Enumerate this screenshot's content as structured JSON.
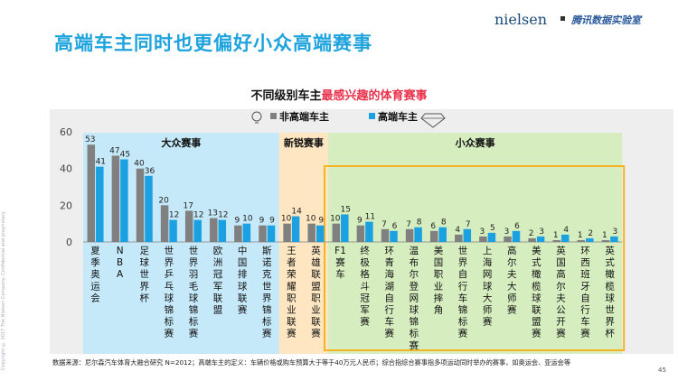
{
  "slide": {
    "title": "高端车主同时也更偏好小众高端赛事",
    "brand": "nielsen",
    "lab": "腾讯数据实验室",
    "copyright": "Copyright © 2017 The Nielsen Company. Confidential and proprietary.",
    "page_number": "45",
    "footnote": "数据来源：尼尔森汽车体育大融合研究 N=2012；高端车主的定义：车辆价格或购车预算大于等于40万元人民币；综合指综合赛事指多项运动同时举办的赛事，如奥运会、亚运会等"
  },
  "chart_data": {
    "type": "bar",
    "title_prefix": "不同级别车主",
    "title_highlight": "最感兴趣的体育赛事",
    "ylim": [
      0,
      60
    ],
    "yticks": [
      0,
      20,
      40,
      60
    ],
    "legend_position": "top",
    "categories": [
      "夏季奥运会",
      "NBA",
      "足球世界杯",
      "世界乒乓球锦标赛",
      "世界羽毛球锦标赛",
      "欧洲冠军联盟",
      "中国排球联赛",
      "斯诺克世界锦标赛",
      "王者荣耀职业联赛",
      "英雄联盟职业联赛",
      "F1赛车",
      "终极格斗冠军赛",
      "环青海湖自行车赛",
      "温布尔登网球锦标赛",
      "美国职业摔角",
      "世界自行车锦标赛",
      "上海网球大师赛",
      "高尔夫大师赛",
      "美式橄榄球联盟赛",
      "英国高尔夫公开赛",
      "环西班牙自行车赛",
      "英式橄榄球世界杯"
    ],
    "category_lines": [
      [
        "夏",
        "季",
        "奥",
        "运",
        "会"
      ],
      [
        "N",
        "B",
        "A"
      ],
      [
        "足",
        "球",
        "世",
        "界",
        "杯"
      ],
      [
        "世",
        "界",
        "乒",
        "乓",
        "球",
        "锦",
        "标",
        "赛"
      ],
      [
        "世",
        "界",
        "羽",
        "毛",
        "球",
        "锦",
        "标",
        "赛"
      ],
      [
        "欧",
        "洲",
        "冠",
        "军",
        "联",
        "盟"
      ],
      [
        "中",
        "国",
        "排",
        "球",
        "联",
        "赛"
      ],
      [
        "斯",
        "诺",
        "克",
        "世",
        "界",
        "锦",
        "标",
        "赛"
      ],
      [
        "王",
        "者",
        "荣",
        "耀",
        "职",
        "业",
        "联",
        "赛"
      ],
      [
        "英",
        "雄",
        "联",
        "盟",
        "职",
        "业",
        "联",
        "赛"
      ],
      [
        "F1",
        "赛",
        "车"
      ],
      [
        "终",
        "极",
        "格",
        "斗",
        "冠",
        "军",
        "赛"
      ],
      [
        "环",
        "青",
        "海",
        "湖",
        "自",
        "行",
        "车",
        "赛"
      ],
      [
        "温",
        "布",
        "尔",
        "登",
        "网",
        "球",
        "锦",
        "标",
        "赛"
      ],
      [
        "美",
        "国",
        "职",
        "业",
        "摔",
        "角"
      ],
      [
        "世",
        "界",
        "自",
        "行",
        "车",
        "锦",
        "标",
        "赛"
      ],
      [
        "上",
        "海",
        "网",
        "球",
        "大",
        "师",
        "赛"
      ],
      [
        "高",
        "尔",
        "夫",
        "大",
        "师",
        "赛"
      ],
      [
        "美",
        "式",
        "橄",
        "榄",
        "球",
        "联",
        "盟",
        "赛"
      ],
      [
        "英",
        "国",
        "高",
        "尔",
        "夫",
        "公",
        "开",
        "赛"
      ],
      [
        "环",
        "西",
        "班",
        "牙",
        "自",
        "行",
        "车",
        "赛"
      ],
      [
        "英",
        "式",
        "橄",
        "榄",
        "球",
        "世",
        "界",
        "杯"
      ]
    ],
    "series": [
      {
        "name": "非高端车主",
        "color": "#808080",
        "values": [
          53,
          47,
          40,
          20,
          17,
          13,
          9,
          9,
          10,
          10,
          10,
          9,
          7,
          7,
          6,
          4,
          3,
          3,
          2,
          1,
          1,
          1
        ]
      },
      {
        "name": "高端车主",
        "color": "#1ba1e2",
        "values": [
          41,
          45,
          36,
          12,
          12,
          12,
          10,
          9,
          14,
          9,
          15,
          11,
          6,
          8,
          8,
          7,
          5,
          6,
          3,
          4,
          2,
          3
        ]
      }
    ],
    "groups": [
      {
        "label": "大众赛事",
        "from": 0,
        "to": 7,
        "color": "#c5e9f9"
      },
      {
        "label": "新锐赛事",
        "from": 8,
        "to": 9,
        "color": "#fde6c1"
      },
      {
        "label": "小众赛事",
        "from": 10,
        "to": 21,
        "color": "#d6edc0"
      }
    ],
    "highlight_box": {
      "from": 10,
      "to": 21,
      "color": "#f5b324"
    }
  }
}
